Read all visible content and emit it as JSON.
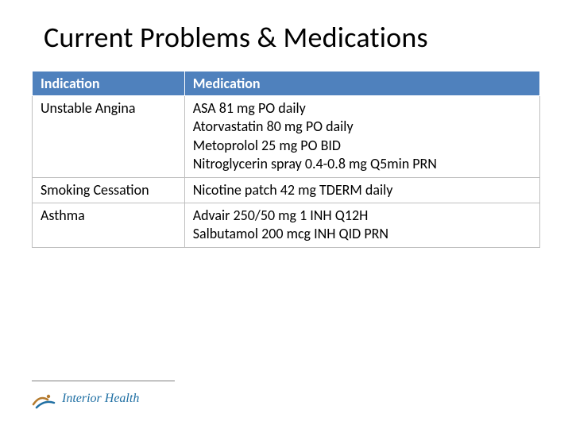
{
  "title": "Current Problems & Medications",
  "table": {
    "header_bg": "#4f81bd",
    "header_fg": "#ffffff",
    "cell_bg": "#ffffff",
    "cell_fg": "#000000",
    "border_color": "#bfbfbf",
    "columns": [
      "Indication",
      "Medication"
    ],
    "col_widths": [
      "30%",
      "70%"
    ],
    "rows": [
      {
        "indication": "Unstable Angina",
        "medication": "ASA 81 mg PO daily\nAtorvastatin 80 mg PO daily\nMetoprolol 25 mg PO BID\nNitroglycerin spray 0.4-0.8 mg Q5min PRN"
      },
      {
        "indication": "Smoking Cessation",
        "medication": "Nicotine patch 42 mg TDERM daily"
      },
      {
        "indication": "Asthma",
        "medication": "Advair 250/50 mg 1 INH Q12H\nSalbutamol 200 mcg INH QID PRN"
      }
    ]
  },
  "logo": {
    "text": "Interior Health",
    "mark_color_a": "#b57b2e",
    "mark_color_b": "#1f6fa3",
    "text_color": "#1f6fa3"
  }
}
